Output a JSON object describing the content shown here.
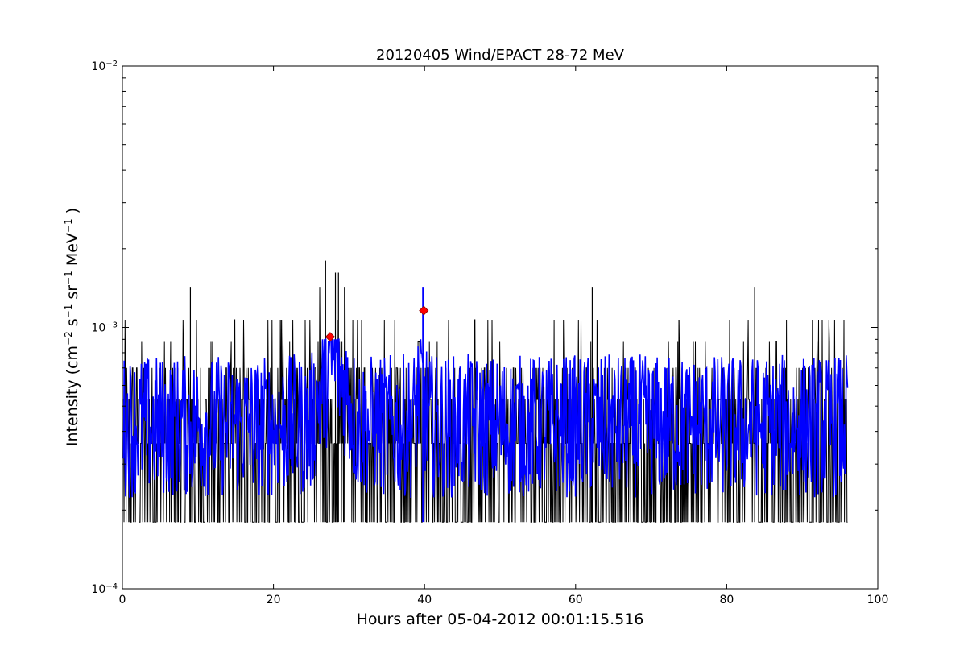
{
  "chart_data": {
    "type": "line",
    "title": "20120405 Wind/EPACT 28-72 MeV",
    "xlabel": "Hours after 05-04-2012 00:01:15.516",
    "ylabel_parts": [
      "Intensity (cm",
      "−2",
      " s",
      "−1",
      " sr",
      "−1",
      " MeV",
      "−1",
      " )"
    ],
    "xlim": [
      0,
      100
    ],
    "ylim": [
      0.0001,
      0.01
    ],
    "yscale": "log",
    "xticks": [
      0,
      20,
      40,
      60,
      80,
      100
    ],
    "xtick_labels": [
      "0",
      "20",
      "40",
      "60",
      "80",
      "100"
    ],
    "yticks": [
      0.0001,
      0.001,
      0.01
    ],
    "ytick_labels": [
      {
        "base": "10",
        "exp": "−4"
      },
      {
        "base": "10",
        "exp": "−3"
      },
      {
        "base": "10",
        "exp": "−2"
      }
    ],
    "grid": false,
    "legend": "none",
    "series": [
      {
        "role": "raw",
        "color": "#000000",
        "x_start": 0.15,
        "x_end": 96.0,
        "levels": [
          0.00018,
          0.00036,
          0.00053,
          0.0007,
          0.00088,
          0.00107,
          0.00125,
          0.00143,
          0.00162,
          0.0018
        ],
        "spikes": [
          {
            "x": 9.0,
            "y": 0.00143
          },
          {
            "x": 26.9,
            "y": 0.0018
          },
          {
            "x": 28.2,
            "y": 0.00162
          },
          {
            "x": 28.6,
            "y": 0.00162
          },
          {
            "x": 29.4,
            "y": 0.00143
          },
          {
            "x": 62.2,
            "y": 0.00143
          },
          {
            "x": 83.7,
            "y": 0.00143
          }
        ]
      },
      {
        "role": "smoothed",
        "color": "#0000ff",
        "x_start": 0.15,
        "x_end": 96.0,
        "baseline": 0.00042,
        "enhancements": [
          {
            "x_from": 25.0,
            "x_to": 31.0,
            "peak": 0.00085
          },
          {
            "x_from": 38.5,
            "x_to": 40.5,
            "peak": 0.00065
          }
        ],
        "spike": {
          "x": 39.8,
          "y_low": 0.00018,
          "y_high": 0.00143
        }
      }
    ],
    "markers": [
      {
        "x": 27.5,
        "y": 0.00092,
        "shape": "diamond",
        "color": "#ff0000"
      },
      {
        "x": 39.9,
        "y": 0.00116,
        "shape": "diamond",
        "color": "#ff0000"
      }
    ]
  }
}
